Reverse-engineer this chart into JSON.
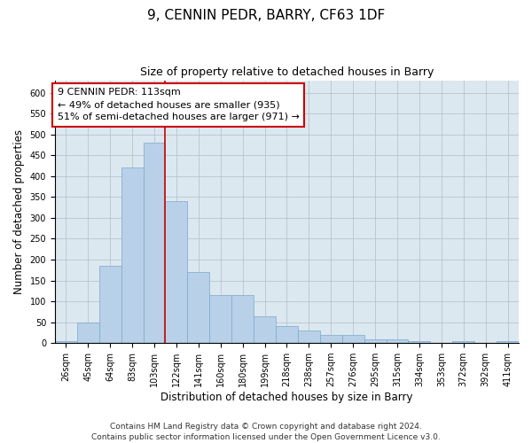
{
  "title": "9, CENNIN PEDR, BARRY, CF63 1DF",
  "subtitle": "Size of property relative to detached houses in Barry",
  "xlabel": "Distribution of detached houses by size in Barry",
  "ylabel": "Number of detached properties",
  "footer_line1": "Contains HM Land Registry data © Crown copyright and database right 2024.",
  "footer_line2": "Contains public sector information licensed under the Open Government Licence v3.0.",
  "annotation_title": "9 CENNIN PEDR: 113sqm",
  "annotation_line1": "← 49% of detached houses are smaller (935)",
  "annotation_line2": "51% of semi-detached houses are larger (971) →",
  "categories": [
    "26sqm",
    "45sqm",
    "64sqm",
    "83sqm",
    "103sqm",
    "122sqm",
    "141sqm",
    "160sqm",
    "180sqm",
    "199sqm",
    "218sqm",
    "238sqm",
    "257sqm",
    "276sqm",
    "295sqm",
    "315sqm",
    "334sqm",
    "353sqm",
    "372sqm",
    "392sqm",
    "411sqm"
  ],
  "values": [
    5,
    50,
    185,
    420,
    480,
    340,
    170,
    115,
    115,
    65,
    40,
    30,
    20,
    20,
    10,
    10,
    5,
    0,
    5,
    0,
    5
  ],
  "bar_color": "#b8d0e8",
  "bar_edge_color": "#7aaacc",
  "vline_color": "#cc0000",
  "vline_x_index": 4,
  "ylim": [
    0,
    630
  ],
  "yticks": [
    0,
    50,
    100,
    150,
    200,
    250,
    300,
    350,
    400,
    450,
    500,
    550,
    600
  ],
  "grid_color": "#b0bec8",
  "bg_color": "#dce8f0",
  "annotation_box_color": "#ffffff",
  "annotation_box_edge": "#cc0000",
  "title_fontsize": 11,
  "subtitle_fontsize": 9,
  "axis_label_fontsize": 8.5,
  "tick_fontsize": 7,
  "annotation_fontsize": 8
}
